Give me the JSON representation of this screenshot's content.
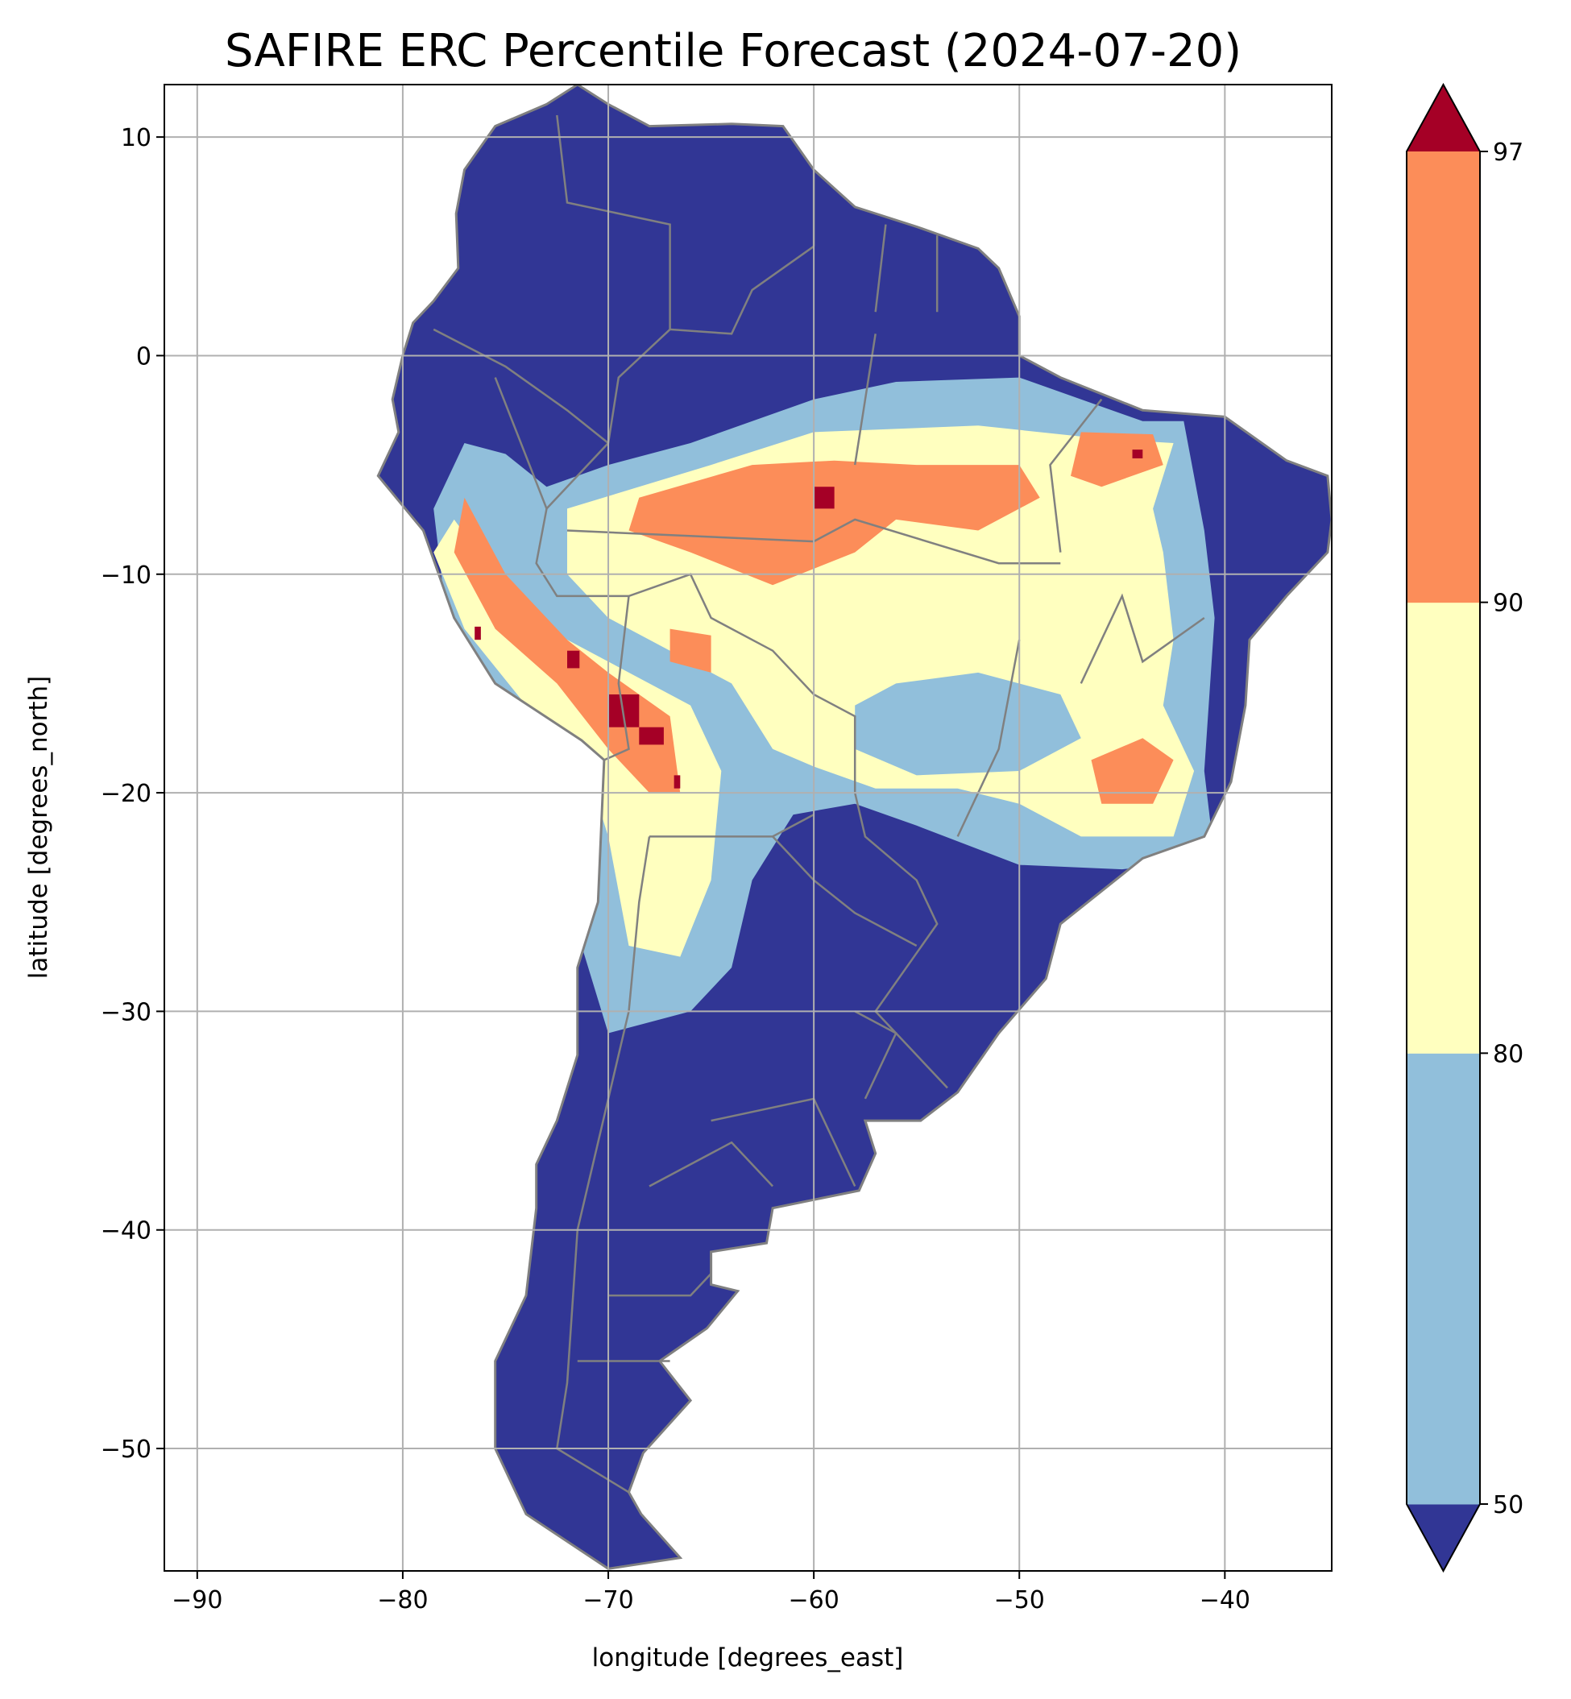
{
  "chart_data": {
    "type": "heatmap",
    "title": "SAFIRE ERC Percentile Forecast (2024-07-20)",
    "xlabel": "longitude [degrees_east]",
    "ylabel": "latitude [degrees_north]",
    "xlim": [
      -91.6,
      -34.8
    ],
    "ylim": [
      -55.6,
      12.4
    ],
    "x_ticks": [
      -90,
      -80,
      -70,
      -60,
      -50,
      -40
    ],
    "x_tick_labels": [
      "−90",
      "−80",
      "−70",
      "−60",
      "−50",
      "−40"
    ],
    "y_ticks": [
      10,
      0,
      -10,
      -20,
      -30,
      -40,
      -50
    ],
    "y_tick_labels": [
      "10",
      "0",
      "−10",
      "−20",
      "−30",
      "−40",
      "−50"
    ],
    "grid": true,
    "colorbar": {
      "levels": [
        50,
        80,
        90,
        97
      ],
      "tick_labels": [
        "50",
        "80",
        "90",
        "97"
      ],
      "extend": "both",
      "colors": [
        "#313695",
        "#91bfdb",
        "#ffffbf",
        "#fc8d59",
        "#a50026"
      ],
      "placement": "right"
    },
    "country_border_color": "#808080",
    "grid_color": "#b0b0b0"
  }
}
